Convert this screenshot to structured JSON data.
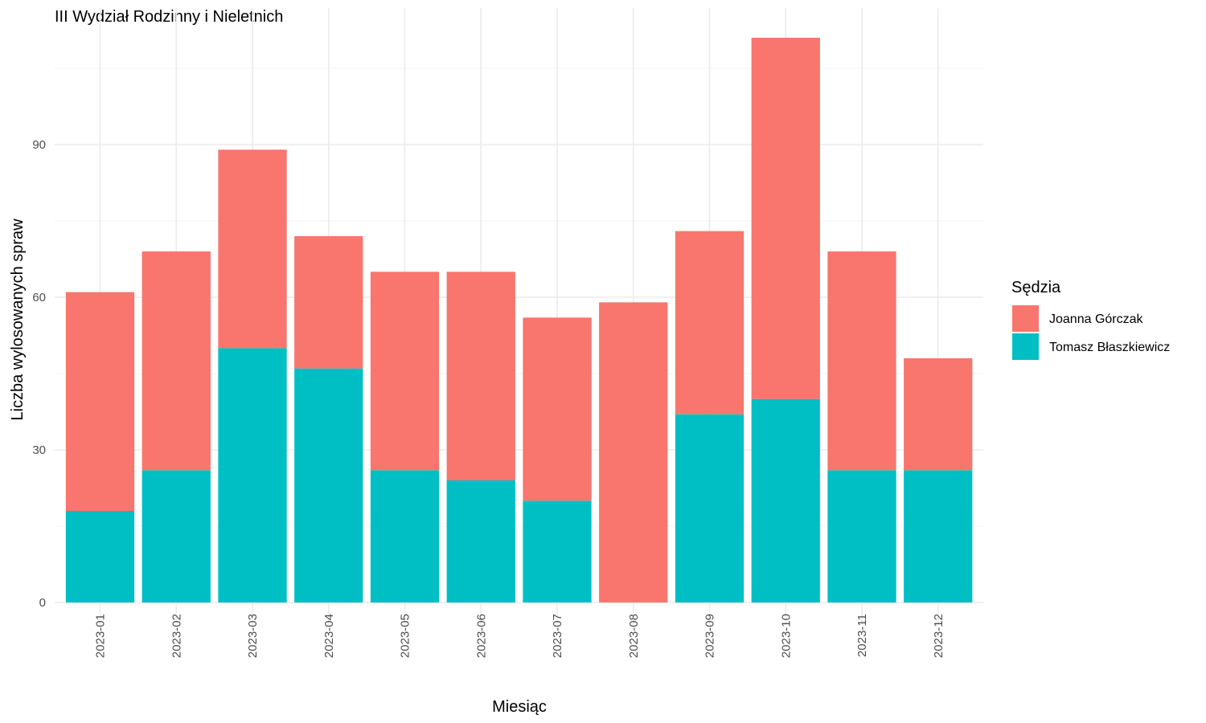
{
  "chart_data": {
    "type": "bar",
    "stacked": true,
    "title": "III Wydział Rodzinny i Nieletnich",
    "xlabel": "Miesiąc",
    "ylabel": "Liczba wylosowanych spraw",
    "categories": [
      "2023-01",
      "2023-02",
      "2023-03",
      "2023-04",
      "2023-05",
      "2023-06",
      "2023-07",
      "2023-08",
      "2023-09",
      "2023-10",
      "2023-11",
      "2023-12"
    ],
    "yticks": [
      0,
      30,
      60,
      90
    ],
    "ylim": [
      0,
      111
    ],
    "grid": true,
    "legend": {
      "title": "Sędzia",
      "position": "right"
    },
    "series": [
      {
        "name": "Joanna Górczak",
        "color": "#F8766D",
        "values": [
          43,
          43,
          39,
          26,
          39,
          41,
          36,
          59,
          36,
          71,
          43,
          22
        ]
      },
      {
        "name": "Tomasz Błaszkiewicz",
        "color": "#00BFC4",
        "values": [
          18,
          26,
          50,
          46,
          26,
          24,
          20,
          0,
          37,
          40,
          26,
          26
        ]
      }
    ]
  }
}
